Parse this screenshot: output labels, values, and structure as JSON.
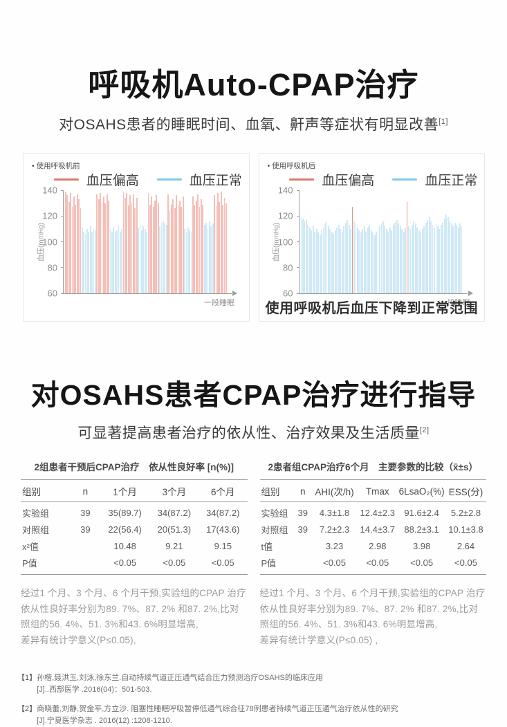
{
  "section1": {
    "title": "呼吸机Auto-CPAP治疗",
    "subtitle": "对OSAHS患者的睡眠时间、血氧、鼾声等症状有明显改善",
    "subtitle_sup": "[1]"
  },
  "section2": {
    "title": "对OSAHS患者CPAP治疗进行指导",
    "subtitle": "可显著提高患者治疗的依从性、治疗效果及生活质量",
    "subtitle_sup": "[2]"
  },
  "chart_data": [
    {
      "type": "bar",
      "note": "使用呼吸机前",
      "legend": [
        {
          "label": "血压偏高",
          "color": "#e2756a"
        },
        {
          "label": "血压正常",
          "color": "#7dc9e8"
        }
      ],
      "ylabel": "血压(mmHg)",
      "xlabel": "一段睡眠",
      "ylim": [
        60,
        140
      ],
      "yticks": [
        140,
        120,
        100,
        80,
        60
      ],
      "bar_colors": {
        "r": "#f5bfb8",
        "b": "#cfe9f6"
      },
      "colors": "rrrrrrrrrrbbbbbbbbbrrrrrrrrbbbbbbbbrrrrrrrrrbbbbbbrrrrrrrbbbbbrrrrrrrrrrbbbbbrrrrrrrbbbbbbrrrrrrrr",
      "values": [
        139,
        136,
        131,
        138,
        127,
        135,
        129,
        137,
        133,
        126,
        111,
        108,
        106,
        110,
        107,
        112,
        108,
        110,
        109,
        137,
        133,
        138,
        131,
        135,
        130,
        137,
        132,
        110,
        108,
        111,
        107,
        109,
        112,
        108,
        110,
        139,
        134,
        138,
        128,
        136,
        130,
        137,
        126,
        134,
        111,
        113,
        109,
        112,
        110,
        108,
        138,
        129,
        135,
        127,
        132,
        136,
        130,
        112,
        115,
        116,
        114,
        113,
        137,
        124,
        129,
        133,
        126,
        136,
        128,
        132,
        127,
        135,
        110,
        108,
        111,
        109,
        107,
        135,
        128,
        132,
        137,
        127,
        133,
        129,
        113,
        115,
        110,
        116,
        112,
        114,
        136,
        128,
        138,
        131,
        139,
        129,
        134,
        130
      ],
      "caption": ""
    },
    {
      "type": "bar",
      "note": "使用呼吸机后",
      "legend": [
        {
          "label": "血压偏高",
          "color": "#e2756a"
        },
        {
          "label": "血压正常",
          "color": "#7dc9e8"
        }
      ],
      "ylabel": "血压(mmHg)",
      "xlabel": "一段睡眠",
      "ylim": [
        60,
        140
      ],
      "yticks": [
        140,
        120,
        100,
        80,
        60
      ],
      "bar_colors": {
        "r": "#ec9287",
        "b": "#cfe9f6"
      },
      "colors": "bbbbbbbbbbbbbbbbbbbbbbbbbbbbbbrbbbbbbbbbbbbbbbbbbbbbbbbbbbbbbbrbbbbbbbbbbbbbbbbbbbbbbbbbbbbbbbb",
      "values": [
        119,
        118,
        116,
        117,
        113,
        111,
        109,
        112,
        108,
        110,
        107,
        105,
        109,
        111,
        114,
        116,
        112,
        110,
        108,
        106,
        109,
        111,
        113,
        110,
        108,
        112,
        115,
        117,
        113,
        110,
        127,
        116,
        114,
        111,
        109,
        107,
        110,
        112,
        108,
        111,
        113,
        109,
        107,
        105,
        108,
        110,
        112,
        114,
        116,
        112,
        110,
        108,
        111,
        109,
        113,
        115,
        117,
        114,
        112,
        110,
        108,
        111,
        131,
        112,
        110,
        113,
        116,
        114,
        111,
        109,
        107,
        110,
        112,
        115,
        117,
        119,
        116,
        113,
        111,
        114,
        112,
        110,
        113,
        115,
        118,
        121,
        119,
        116,
        114,
        112,
        115,
        113,
        111,
        114,
        112
      ],
      "caption": "使用呼吸机后血压下降到正常范围"
    }
  ],
  "tables": [
    {
      "title": "2组患者干预后CPAP治疗　依从性良好率 [n(%)]",
      "headers": [
        "组别",
        "n",
        "1个月",
        "3个月",
        "6个月"
      ],
      "col_widths": [
        "22%",
        "13%",
        "22%",
        "21.5%",
        "21.5%"
      ],
      "rows": [
        [
          "实验组",
          "39",
          "35(89.7)",
          "34(87.2)",
          "34(87.2)"
        ],
        [
          "对照组",
          "39",
          "22(56.4)",
          "20(51.3)",
          "17(43.6)"
        ],
        [
          "x²值",
          "",
          "10.48",
          "9.21",
          "9.15"
        ],
        [
          "P值",
          "",
          "<0.05",
          "<0.05",
          "<0.05"
        ]
      ],
      "note_lines": [
        "经过1 个月、3 个月、6 个月干预,实验组的CPAP 治疗依从性良好率分别为89. 7%、87. 2% 和87. 2%,比对照组的56. 4%、51. 3%和43. 6%明显增高,",
        "差异有统计学意义(P≤0.05),"
      ]
    },
    {
      "title": "2患者组CPAP治疗6个月　主要参数的比较（x̄±s）",
      "headers": [
        "组别",
        "n",
        "AHI(次/h)",
        "Tmax",
        "6LsaO₂(%)",
        "ESS(分)"
      ],
      "col_widths": [
        "15%",
        "8%",
        "20%",
        "18%",
        "21%",
        "18%"
      ],
      "rows": [
        [
          "实验组",
          "39",
          "4.3±1.8",
          "12.4±2.3",
          "91.6±2.4",
          "5.2±2.8"
        ],
        [
          "对照组",
          "39",
          "7.2±2.3",
          "14.4±3.7",
          "88.2±3.1",
          "10.1±3.8"
        ],
        [
          "t值",
          "",
          "3.23",
          "2.98",
          "3.98",
          "2.64"
        ],
        [
          "P值",
          "",
          "<0.05",
          "<0.05",
          "<0.05",
          "<0.05"
        ]
      ],
      "note_lines": [
        "经过1 个月、3 个月、6 个月干预,实验组的CPAP 治疗依从性良好率分别为89. 7%、87. 2% 和87. 2%,比对照组的56. 4%、51. 3%和43. 6%明显增高,",
        "差异有统计学意义(P≤0.05) ,"
      ]
    }
  ],
  "references": [
    {
      "marker": "【1】",
      "line1": "孙楷,聂洪玉,刘泳,徐东兰.自动持续气道正压通气结合压力预测治疗OSAHS的临床应用",
      "line2": "[J]..西部医学 .2016(04)：501-503."
    },
    {
      "marker": "【2】",
      "line1": "商晓蕾,刘静,贺金平,方立沙. 阻塞性睡眠呼吸暂停低通气综合征78例患者持续气道正压通气治疗依从性的研究",
      "line2": "[J].宁夏医学杂志 . 2016(12) :1208-1210."
    }
  ]
}
